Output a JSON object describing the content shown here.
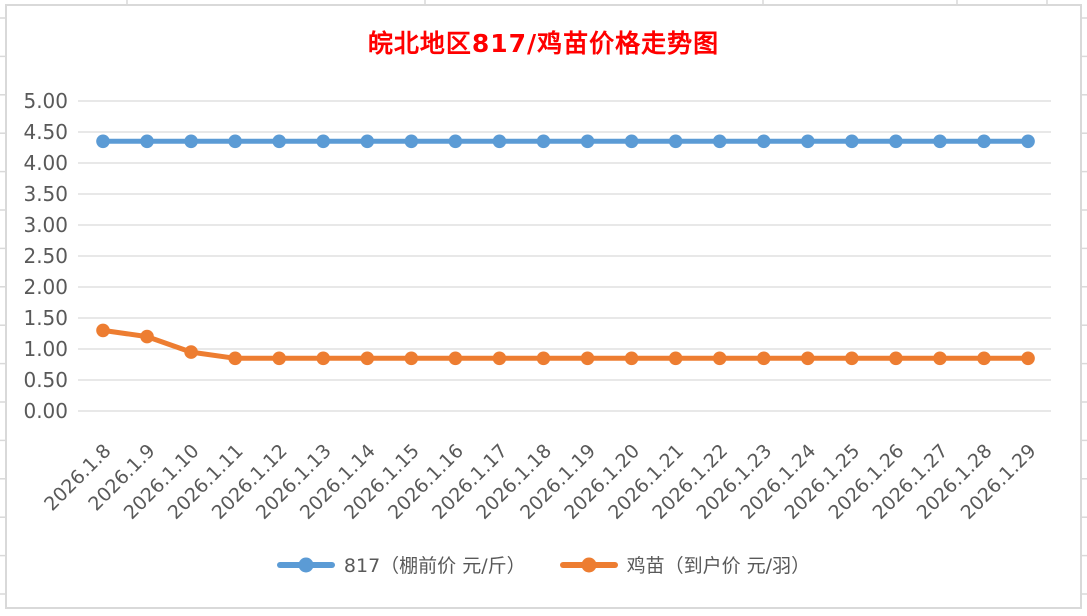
{
  "chart_data": {
    "type": "line",
    "title": "皖北地区817/鸡苗价格走势图",
    "title_color": "#FF0000",
    "categories": [
      "2026.1.8",
      "2026.1.9",
      "2026.1.10",
      "2026.1.11",
      "2026.1.12",
      "2026.1.13",
      "2026.1.14",
      "2026.1.15",
      "2026.1.16",
      "2026.1.17",
      "2026.1.18",
      "2026.1.19",
      "2026.1.20",
      "2026.1.21",
      "2026.1.22",
      "2026.1.23",
      "2026.1.24",
      "2026.1.25",
      "2026.1.26",
      "2026.1.27",
      "2026.1.28",
      "2026.1.29"
    ],
    "series": [
      {
        "name": "817（棚前价 元/斤）",
        "color": "#5B9BD5",
        "values": [
          4.35,
          4.35,
          4.35,
          4.35,
          4.35,
          4.35,
          4.35,
          4.35,
          4.35,
          4.35,
          4.35,
          4.35,
          4.35,
          4.35,
          4.35,
          4.35,
          4.35,
          4.35,
          4.35,
          4.35,
          4.35,
          4.35
        ]
      },
      {
        "name": "鸡苗（到户价 元/羽）",
        "color": "#ED7D31",
        "values": [
          1.3,
          1.2,
          0.95,
          0.85,
          0.85,
          0.85,
          0.85,
          0.85,
          0.85,
          0.85,
          0.85,
          0.85,
          0.85,
          0.85,
          0.85,
          0.85,
          0.85,
          0.85,
          0.85,
          0.85,
          0.85,
          0.85
        ]
      }
    ],
    "ylim": [
      0,
      5
    ],
    "ytick_step": 0.5,
    "ytick_labels": [
      "5.00",
      "4.50",
      "4.00",
      "3.50",
      "3.00",
      "2.50",
      "2.00",
      "1.50",
      "1.00",
      "0.50",
      "0.00"
    ],
    "xlabel": "",
    "ylabel": "",
    "grid": true,
    "legend_position": "bottom",
    "axis_text_color": "#595959",
    "gridline_color": "#D9D9D9",
    "chart_border_color": "#D9D9D9",
    "background_color": "#FFFFFF"
  }
}
